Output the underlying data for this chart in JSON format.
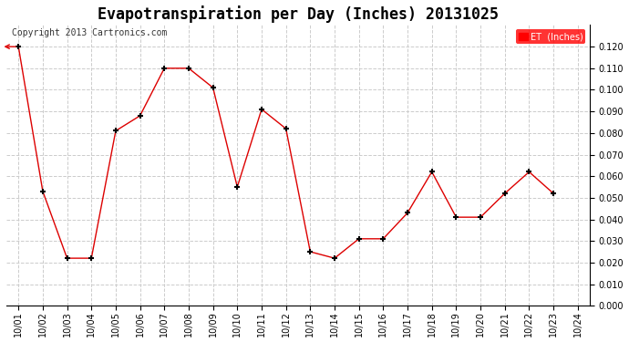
{
  "title": "Evapotranspiration per Day (Inches) 20131025",
  "copyright_text": "Copyright 2013 Cartronics.com",
  "legend_label": "ET  (Inches)",
  "legend_bg": "#ff0000",
  "legend_text_color": "#ffffff",
  "x_labels": [
    "10/01",
    "10/02",
    "10/03",
    "10/04",
    "10/05",
    "10/06",
    "10/07",
    "10/08",
    "10/09",
    "10/10",
    "10/11",
    "10/12",
    "10/13",
    "10/14",
    "10/15",
    "10/16",
    "10/17",
    "10/18",
    "10/19",
    "10/20",
    "10/21",
    "10/22",
    "10/23",
    "10/24"
  ],
  "y_values": [
    0.12,
    0.053,
    0.022,
    0.022,
    0.081,
    0.088,
    0.11,
    0.11,
    0.101,
    0.055,
    0.091,
    0.082,
    0.025,
    0.022,
    0.031,
    0.031,
    0.043,
    0.062,
    0.041,
    0.041,
    0.052,
    0.062,
    0.052,
    null
  ],
  "line_color": "#dd0000",
  "marker": "+",
  "marker_color": "#000000",
  "marker_size": 5,
  "marker_lw": 1.5,
  "ylim": [
    0.0,
    0.13
  ],
  "yticks": [
    0.0,
    0.01,
    0.02,
    0.03,
    0.04,
    0.05,
    0.06,
    0.07,
    0.08,
    0.09,
    0.1,
    0.11,
    0.12
  ],
  "grid_color": "#cccccc",
  "grid_linestyle": "--",
  "background_color": "#ffffff",
  "title_fontsize": 12,
  "tick_fontsize": 7,
  "copyright_fontsize": 7
}
